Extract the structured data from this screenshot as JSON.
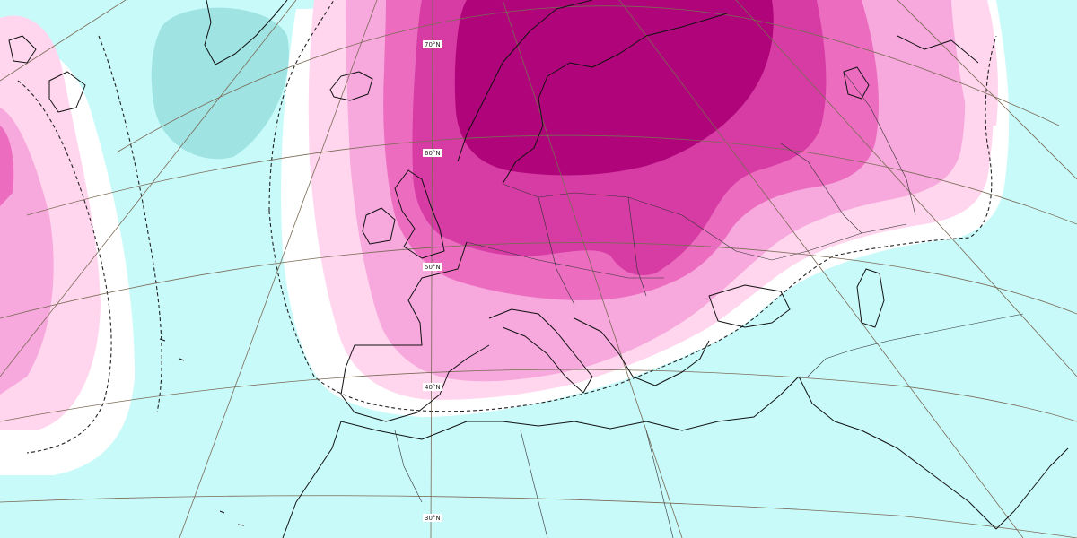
{
  "map": {
    "colors": {
      "background": "#c8fafa",
      "teal_negative": "#9fe3e3",
      "white_band": "#ffffff",
      "pink_1": "#ffd6ee",
      "pink_2": "#f7a8dc",
      "pink_3": "#ec6dc0",
      "magenta_4": "#d63ca4",
      "magenta_5": "#b0057a"
    },
    "latitude_labels": [
      {
        "id": "lat-70",
        "text": "70°N"
      },
      {
        "id": "lat-60",
        "text": "60°N"
      },
      {
        "id": "lat-50",
        "text": "50°N"
      },
      {
        "id": "lat-40",
        "text": "40°N"
      },
      {
        "id": "lat-30",
        "text": "30°N"
      }
    ],
    "lines": {
      "graticule": "graticule",
      "coastline": "coastline",
      "zero_contour": "dashed-contour"
    }
  }
}
